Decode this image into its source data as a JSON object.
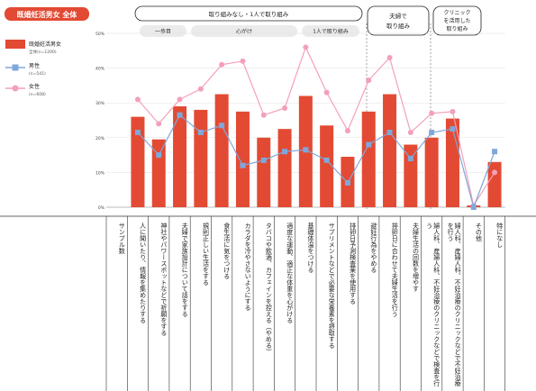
{
  "chart_data": {
    "type": "bar",
    "title": "既婚妊活男女 全体",
    "legend": [
      {
        "name": "既婚妊活男女",
        "sub": "全体(n=1200)",
        "marker": "bar",
        "color": "#e34a33"
      },
      {
        "name": "男性",
        "sub": "(n=541)",
        "marker": "square-line",
        "color": "#7ea8db"
      },
      {
        "name": "女性",
        "sub": "(n=608)",
        "marker": "circle-line",
        "color": "#f4a0b8"
      }
    ],
    "yticks": [
      "0%",
      "10%",
      "20%",
      "30%",
      "40%",
      "50%"
    ],
    "ylim": [
      0,
      50
    ],
    "categories": [
      "サンプル数",
      "人に聞いたり、情報を集めたりする",
      "神社やパワースポットなどで祈願をする",
      "夫婦で家族設計について話をする",
      "規則正しい生活をする",
      "食生活に気をつける",
      "カラダを冷やさないようにする",
      "タバコや飲酒、カフェインを控える（やめる）",
      "適度な運動、適正な体重を心がける",
      "基礎体温をつける",
      "サプリメントなどで必要な栄養素を摂取する",
      "排卵日予測検査薬を使用する",
      "避妊行為をやめる",
      "排卵日に合わせて夫婦生活を行う",
      "夫婦生活の回数を増やす",
      "婦人科、産婦人科、不妊治療のクリニックなどで検査を行う",
      "婦人科、産婦人科、不妊治療のクリニックなどで不妊治療を行う",
      "その他",
      "特になし"
    ],
    "series": [
      {
        "name": "既婚妊活男女",
        "values": [
          null,
          26,
          19.5,
          29,
          28,
          32.5,
          27.5,
          20,
          22.5,
          32,
          23.5,
          14.5,
          27.5,
          32.5,
          18,
          20,
          25.5,
          0.5,
          13
        ]
      },
      {
        "name": "男性",
        "values": [
          null,
          21.5,
          15,
          26.5,
          21.5,
          23.5,
          12,
          13.5,
          16,
          16.5,
          13.5,
          7,
          18,
          21.5,
          14,
          21.5,
          22.5,
          0,
          16
        ]
      },
      {
        "name": "女性",
        "values": [
          null,
          31,
          24,
          31,
          34,
          41,
          42,
          26.5,
          28.5,
          46,
          33,
          22,
          36.5,
          43,
          21.5,
          27,
          27.5,
          0.5,
          10
        ]
      }
    ],
    "groups": {
      "top": [
        {
          "label": "取り組みなし・1人で取り組み"
        },
        {
          "label": "夫婦で取り組み"
        },
        {
          "label": "クリニックを活用した取り組み"
        }
      ],
      "sub": [
        {
          "label": "一歩目"
        },
        {
          "label": "心がけ"
        },
        {
          "label": "1人で取り組み"
        }
      ]
    }
  }
}
